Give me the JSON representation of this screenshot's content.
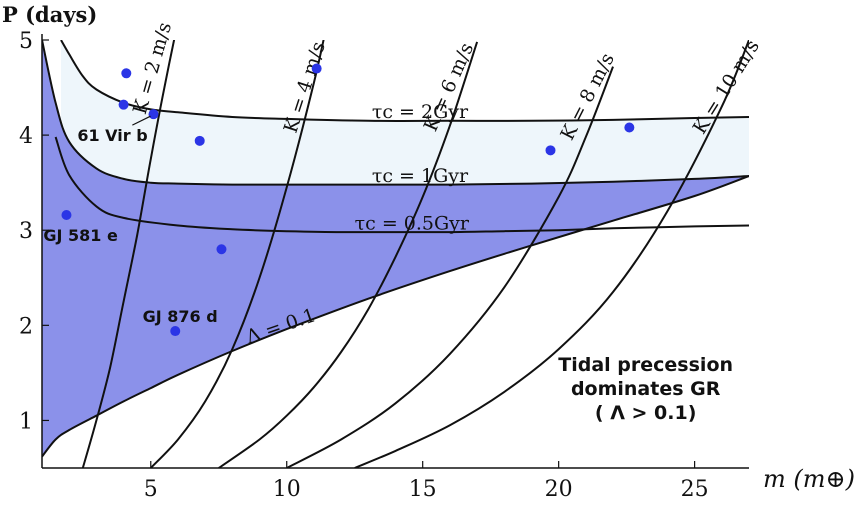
{
  "chart_data": {
    "type": "line",
    "title": "",
    "xlabel": "m (m⊕)",
    "ylabel": "P (days)",
    "xlim": [
      1,
      27
    ],
    "ylim": [
      0.5,
      5
    ],
    "xticks": [
      5,
      10,
      15,
      20,
      25
    ],
    "yticks": [
      1,
      2,
      3,
      4,
      5
    ],
    "grid": false,
    "colors": {
      "precession_region": "#8b91ea",
      "light_band": "#eef6fb",
      "planet": "#2b35e6",
      "curve": "#111111"
    },
    "regions": [
      {
        "name": "Λ > 0.1 (tidal precession dominates GR)",
        "x": [
          1,
          1.5,
          2,
          3,
          4,
          5,
          6,
          8,
          10,
          13,
          16,
          19,
          22,
          25,
          27
        ],
        "top": [
          5.0,
          4.34,
          3.93,
          3.65,
          3.54,
          3.5,
          3.49,
          3.48,
          3.48,
          3.48,
          3.48,
          3.49,
          3.51,
          3.54,
          3.57
        ],
        "bottom": [
          0.62,
          0.8,
          0.9,
          1.05,
          1.2,
          1.34,
          1.48,
          1.73,
          1.96,
          2.28,
          2.57,
          2.84,
          3.1,
          3.36,
          3.57
        ]
      },
      {
        "name": "light band",
        "x": [
          1.7,
          2,
          2.5,
          3,
          4,
          5,
          6,
          8,
          10,
          13,
          16,
          19,
          22,
          25,
          27
        ],
        "top": [
          5.0,
          4.85,
          4.62,
          4.48,
          4.34,
          4.27,
          4.24,
          4.19,
          4.17,
          4.15,
          4.15,
          4.15,
          4.16,
          4.18,
          4.19
        ],
        "bottom": [
          4.18,
          3.93,
          3.77,
          3.65,
          3.54,
          3.5,
          3.49,
          3.48,
          3.48,
          3.48,
          3.48,
          3.49,
          3.51,
          3.54,
          3.57
        ]
      }
    ],
    "series": [
      {
        "name": "τc = 2Gyr",
        "x": [
          1.7,
          2,
          2.5,
          3,
          4,
          5,
          6,
          8,
          10,
          13,
          16,
          19,
          22,
          25,
          27
        ],
        "y": [
          5.0,
          4.85,
          4.62,
          4.48,
          4.34,
          4.27,
          4.24,
          4.19,
          4.17,
          4.15,
          4.15,
          4.15,
          4.16,
          4.18,
          4.19
        ]
      },
      {
        "name": "τc = 1Gyr",
        "x": [
          1,
          1.5,
          2,
          3,
          4,
          5,
          6,
          8,
          10,
          13,
          16,
          19,
          22,
          25,
          27
        ],
        "y": [
          5.0,
          4.34,
          3.93,
          3.65,
          3.54,
          3.5,
          3.49,
          3.48,
          3.48,
          3.48,
          3.48,
          3.49,
          3.51,
          3.54,
          3.57
        ]
      },
      {
        "name": "τc = 0.5Gyr",
        "x": [
          1.5,
          2,
          3,
          4,
          6,
          8,
          10,
          12,
          14,
          16,
          18,
          20,
          22,
          25,
          27
        ],
        "y": [
          3.98,
          3.58,
          3.25,
          3.13,
          3.05,
          3.01,
          2.99,
          2.98,
          2.98,
          2.98,
          2.99,
          3.0,
          3.02,
          3.04,
          3.05
        ]
      },
      {
        "name": "Λ = 0.1",
        "x": [
          1,
          1.5,
          2,
          3,
          4,
          5,
          6,
          8,
          10,
          13,
          16,
          19,
          22,
          25,
          27
        ],
        "y": [
          0.62,
          0.8,
          0.9,
          1.05,
          1.2,
          1.34,
          1.48,
          1.73,
          1.96,
          2.28,
          2.57,
          2.84,
          3.1,
          3.36,
          3.57
        ]
      },
      {
        "name": "K = 2 m/s",
        "x": [
          2.5,
          3,
          3.5,
          4,
          4.5,
          5,
          5.5,
          6
        ],
        "y": [
          0.5,
          1.0,
          1.55,
          2.25,
          2.95,
          3.75,
          4.5,
          5.2
        ]
      },
      {
        "name": "K = 4 m/s",
        "x": [
          5,
          6,
          7,
          8,
          9,
          10,
          11,
          11.5
        ],
        "y": [
          0.5,
          0.8,
          1.2,
          1.75,
          2.5,
          3.45,
          4.55,
          5.2
        ]
      },
      {
        "name": "K = 6 m/s",
        "x": [
          7.5,
          9,
          10,
          11,
          12,
          13,
          14,
          15,
          16,
          17
        ],
        "y": [
          0.5,
          0.8,
          1.05,
          1.35,
          1.72,
          2.17,
          2.72,
          3.35,
          4.1,
          4.98
        ]
      },
      {
        "name": "K = 8 m/s",
        "x": [
          10,
          12,
          14,
          16,
          18,
          20,
          21,
          22
        ],
        "y": [
          0.5,
          0.8,
          1.18,
          1.7,
          2.4,
          3.35,
          3.98,
          4.72
        ]
      },
      {
        "name": "K = 10 m/s",
        "x": [
          12.5,
          14,
          16,
          18,
          20,
          22,
          24,
          26,
          27
        ],
        "y": [
          0.5,
          0.68,
          0.95,
          1.3,
          1.75,
          2.35,
          3.2,
          4.3,
          5.0
        ]
      }
    ],
    "curve_labels": [
      {
        "text": "K = 2 m/s",
        "x": 5.1,
        "y": 4.7,
        "angle": -74
      },
      {
        "text": "K = 4 m/s",
        "x": 10.7,
        "y": 4.5,
        "angle": -72
      },
      {
        "text": "K = 6 m/s",
        "x": 16.0,
        "y": 4.5,
        "angle": -66
      },
      {
        "text": "K = 8 m/s",
        "x": 21.1,
        "y": 4.4,
        "angle": -63
      },
      {
        "text": "K = 10 m/s",
        "x": 26.2,
        "y": 4.5,
        "angle": -58
      },
      {
        "text": "τc = 2Gyr",
        "x": 14.9,
        "y": 4.23,
        "angle": 0
      },
      {
        "text": "τc = 1Gyr",
        "x": 14.9,
        "y": 3.56,
        "angle": 0
      },
      {
        "text": "τc = 0.5Gyr",
        "x": 14.6,
        "y": 3.06,
        "angle": 0
      },
      {
        "text": "Λ = 0.1",
        "x": 9.8,
        "y": 1.98,
        "angle": -19
      }
    ],
    "points": [
      {
        "x": 4.1,
        "y": 4.65
      },
      {
        "x": 4.0,
        "y": 4.32
      },
      {
        "x": 5.1,
        "y": 4.22,
        "label": "61 Vir b"
      },
      {
        "x": 6.8,
        "y": 3.94
      },
      {
        "x": 11.1,
        "y": 4.7
      },
      {
        "x": 1.9,
        "y": 3.16,
        "label": "GJ 581 e"
      },
      {
        "x": 7.6,
        "y": 2.8
      },
      {
        "x": 5.9,
        "y": 1.94,
        "label": "GJ 876 d"
      },
      {
        "x": 19.7,
        "y": 3.84
      },
      {
        "x": 22.6,
        "y": 4.08
      }
    ],
    "point_labels": [
      {
        "text": "61 Vir b",
        "x": 2.3,
        "y": 4.0
      },
      {
        "text": "GJ 581 e",
        "x": 1.05,
        "y": 2.95
      },
      {
        "text": "GJ 876 d",
        "x": 4.7,
        "y": 2.1
      }
    ],
    "annotation": {
      "lines": [
        "Tidal precession",
        "dominates GR",
        "( Λ > 0.1)"
      ],
      "x": 23.2,
      "y": 1.52
    }
  }
}
